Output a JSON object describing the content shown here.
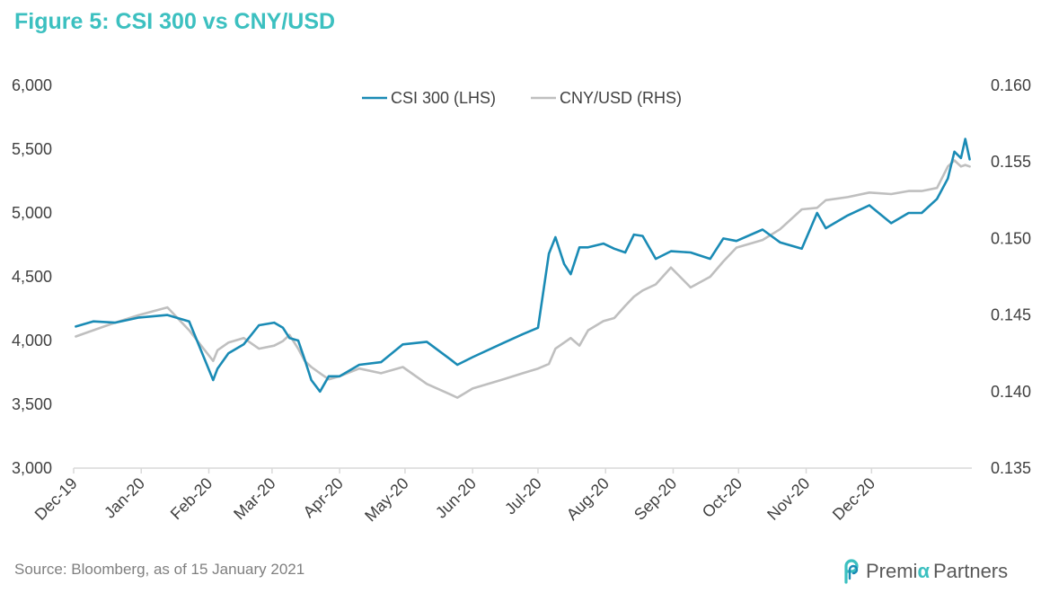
{
  "title": "Figure 5: CSI 300 vs CNY/USD",
  "source": "Source: Bloomberg, as of 15 January 2021",
  "logo": {
    "text_a": "Premi",
    "text_b": "α",
    "text_c": "Partners"
  },
  "colors": {
    "csi": "#1a8bb5",
    "cny": "#bfbfbf",
    "title": "#3cc0c0",
    "axis": "#d9d9d9",
    "text": "#404040"
  },
  "chart_data": {
    "type": "line",
    "legend_position": "top-center",
    "grid": false,
    "x_ticks": [
      "Dec-19",
      "Jan-20",
      "Feb-20",
      "Mar-20",
      "Apr-20",
      "May-20",
      "Jun-20",
      "Jul-20",
      "Aug-20",
      "Sep-20",
      "Oct-20",
      "Nov-20",
      "Dec-20"
    ],
    "y_left": {
      "ticks": [
        "3,000",
        "3,500",
        "4,000",
        "4,500",
        "5,000",
        "5,500",
        "6,000"
      ],
      "ylim": [
        3000,
        6000
      ]
    },
    "y_right": {
      "ticks": [
        "0.135",
        "0.140",
        "0.145",
        "0.150",
        "0.155",
        "0.160"
      ],
      "ylim": [
        0.135,
        0.16
      ]
    },
    "series": [
      {
        "name": "CSI 300 (LHS)",
        "axis": "left",
        "x": [
          "2019-12-02",
          "2019-12-10",
          "2019-12-20",
          "2019-12-31",
          "2020-01-13",
          "2020-01-23",
          "2020-02-03",
          "2020-02-05",
          "2020-02-10",
          "2020-02-17",
          "2020-02-24",
          "2020-03-02",
          "2020-03-06",
          "2020-03-09",
          "2020-03-13",
          "2020-03-16",
          "2020-03-19",
          "2020-03-23",
          "2020-03-27",
          "2020-04-01",
          "2020-04-10",
          "2020-04-20",
          "2020-04-30",
          "2020-05-11",
          "2020-05-22",
          "2020-05-25",
          "2020-06-01",
          "2020-06-15",
          "2020-06-24",
          "2020-07-01",
          "2020-07-06",
          "2020-07-09",
          "2020-07-13",
          "2020-07-16",
          "2020-07-20",
          "2020-07-24",
          "2020-07-31",
          "2020-08-05",
          "2020-08-10",
          "2020-08-14",
          "2020-08-18",
          "2020-08-24",
          "2020-08-31",
          "2020-09-09",
          "2020-09-18",
          "2020-09-24",
          "2020-09-30",
          "2020-10-12",
          "2020-10-20",
          "2020-10-30",
          "2020-11-06",
          "2020-11-10",
          "2020-11-20",
          "2020-11-30",
          "2020-12-10",
          "2020-12-18",
          "2020-12-24",
          "2020-12-31",
          "2021-01-05",
          "2021-01-08",
          "2021-01-11",
          "2021-01-13",
          "2021-01-15"
        ],
        "values": [
          4110,
          4150,
          4140,
          4180,
          4200,
          4150,
          3690,
          3780,
          3900,
          3970,
          4120,
          4140,
          4100,
          4020,
          4000,
          3850,
          3690,
          3600,
          3720,
          3720,
          3810,
          3830,
          3970,
          3990,
          3850,
          3810,
          3870,
          3980,
          4050,
          4100,
          4680,
          4810,
          4600,
          4520,
          4730,
          4730,
          4760,
          4720,
          4690,
          4830,
          4820,
          4640,
          4700,
          4690,
          4640,
          4800,
          4780,
          4870,
          4770,
          4720,
          5000,
          4880,
          4980,
          5060,
          4920,
          5000,
          5000,
          5110,
          5270,
          5480,
          5430,
          5580,
          5420
        ]
      },
      {
        "name": "CNY/USD (RHS)",
        "axis": "right",
        "x": [
          "2019-12-02",
          "2019-12-10",
          "2019-12-20",
          "2019-12-31",
          "2020-01-13",
          "2020-01-23",
          "2020-02-03",
          "2020-02-05",
          "2020-02-10",
          "2020-02-17",
          "2020-02-24",
          "2020-03-02",
          "2020-03-06",
          "2020-03-09",
          "2020-03-13",
          "2020-03-16",
          "2020-03-19",
          "2020-03-23",
          "2020-03-27",
          "2020-04-01",
          "2020-04-10",
          "2020-04-20",
          "2020-04-30",
          "2020-05-11",
          "2020-05-22",
          "2020-05-25",
          "2020-06-01",
          "2020-06-15",
          "2020-06-24",
          "2020-07-01",
          "2020-07-06",
          "2020-07-09",
          "2020-07-13",
          "2020-07-16",
          "2020-07-20",
          "2020-07-24",
          "2020-07-31",
          "2020-08-05",
          "2020-08-10",
          "2020-08-14",
          "2020-08-18",
          "2020-08-24",
          "2020-08-31",
          "2020-09-09",
          "2020-09-18",
          "2020-09-24",
          "2020-09-30",
          "2020-10-12",
          "2020-10-20",
          "2020-10-30",
          "2020-11-06",
          "2020-11-10",
          "2020-11-20",
          "2020-11-30",
          "2020-12-10",
          "2020-12-18",
          "2020-12-24",
          "2020-12-31",
          "2021-01-05",
          "2021-01-08",
          "2021-01-11",
          "2021-01-13",
          "2021-01-15"
        ],
        "values": [
          0.1436,
          0.144,
          0.1445,
          0.145,
          0.1455,
          0.144,
          0.142,
          0.1427,
          0.1432,
          0.1435,
          0.1428,
          0.143,
          0.1433,
          0.1437,
          0.1428,
          0.142,
          0.1416,
          0.1412,
          0.1408,
          0.141,
          0.1415,
          0.1412,
          0.1416,
          0.1405,
          0.1398,
          0.1396,
          0.1402,
          0.1408,
          0.1412,
          0.1415,
          0.1418,
          0.1428,
          0.1432,
          0.1435,
          0.143,
          0.144,
          0.1446,
          0.1448,
          0.1456,
          0.1462,
          0.1466,
          0.147,
          0.1481,
          0.1468,
          0.1475,
          0.1485,
          0.1494,
          0.1499,
          0.1506,
          0.1519,
          0.152,
          0.1525,
          0.1527,
          0.153,
          0.1529,
          0.1531,
          0.1531,
          0.1533,
          0.1547,
          0.1551,
          0.1547,
          0.1548,
          0.1547
        ]
      }
    ]
  }
}
